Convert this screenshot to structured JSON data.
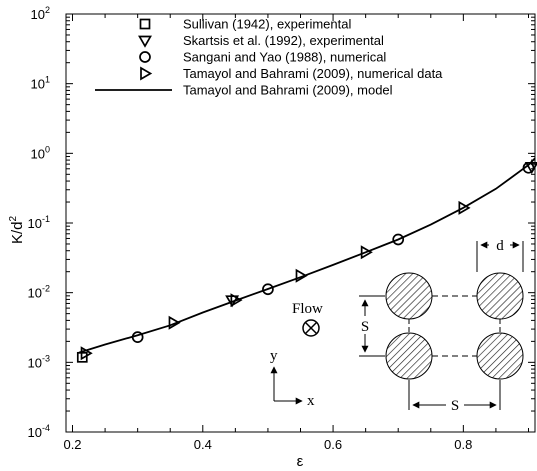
{
  "chart_data": {
    "type": "scatter",
    "xlabel": "ε",
    "ylabel": "K/d",
    "ylabel_sup": "2",
    "xlim": [
      0.19,
      0.91
    ],
    "ylim_exp": [
      -4,
      2
    ],
    "yscale": "log",
    "x_ticks": [
      "0.2",
      "0.4",
      "0.6",
      "0.8"
    ],
    "x_tick_values": [
      0.2,
      0.4,
      0.6,
      0.8
    ],
    "y_ticks": [
      {
        "base": "10",
        "exp": "-4",
        "value": -4
      },
      {
        "base": "10",
        "exp": "-3",
        "value": -3
      },
      {
        "base": "10",
        "exp": "-2",
        "value": -2
      },
      {
        "base": "10",
        "exp": "-1",
        "value": -1
      },
      {
        "base": "10",
        "exp": "0",
        "value": 0
      },
      {
        "base": "10",
        "exp": "1",
        "value": 1
      },
      {
        "base": "10",
        "exp": "2",
        "value": 2
      }
    ],
    "series": [
      {
        "name": "Sullivan (1942), experimental",
        "marker": "square",
        "points": [
          [
            0.215,
            0.00118
          ]
        ]
      },
      {
        "name": "Skartsis et al. (1992), experimental",
        "marker": "triangle-down",
        "points": [
          [
            0.445,
            0.0078
          ],
          [
            0.905,
            0.64
          ]
        ]
      },
      {
        "name": "Sangani and Yao (1988), numerical",
        "marker": "circle",
        "points": [
          [
            0.3,
            0.0023
          ],
          [
            0.5,
            0.0112
          ],
          [
            0.7,
            0.058
          ],
          [
            0.9,
            0.62
          ]
        ]
      },
      {
        "name": "Tamayol and Bahrami (2009), numerical data",
        "marker": "triangle-right",
        "points": [
          [
            0.22,
            0.00135
          ],
          [
            0.355,
            0.0037
          ],
          [
            0.45,
            0.0078
          ],
          [
            0.55,
            0.0175
          ],
          [
            0.65,
            0.038
          ],
          [
            0.8,
            0.165
          ]
        ]
      },
      {
        "name": "Tamayol and Bahrami (2009), model",
        "marker": "line",
        "points": [
          [
            0.21,
            0.00138
          ],
          [
            0.25,
            0.0018
          ],
          [
            0.3,
            0.00245
          ],
          [
            0.35,
            0.0034
          ],
          [
            0.4,
            0.0052
          ],
          [
            0.45,
            0.0077
          ],
          [
            0.5,
            0.0113
          ],
          [
            0.55,
            0.0167
          ],
          [
            0.6,
            0.025
          ],
          [
            0.65,
            0.038
          ],
          [
            0.7,
            0.058
          ],
          [
            0.75,
            0.095
          ],
          [
            0.8,
            0.165
          ],
          [
            0.85,
            0.31
          ],
          [
            0.9,
            0.68
          ],
          [
            0.91,
            0.85
          ]
        ]
      }
    ],
    "legend_position": "top-left",
    "annotations": {
      "flow": "Flow",
      "axis_y": "y",
      "axis_x": "x",
      "dim_d": "d",
      "dim_s_vertical": "S",
      "dim_s_horizontal": "S"
    }
  }
}
